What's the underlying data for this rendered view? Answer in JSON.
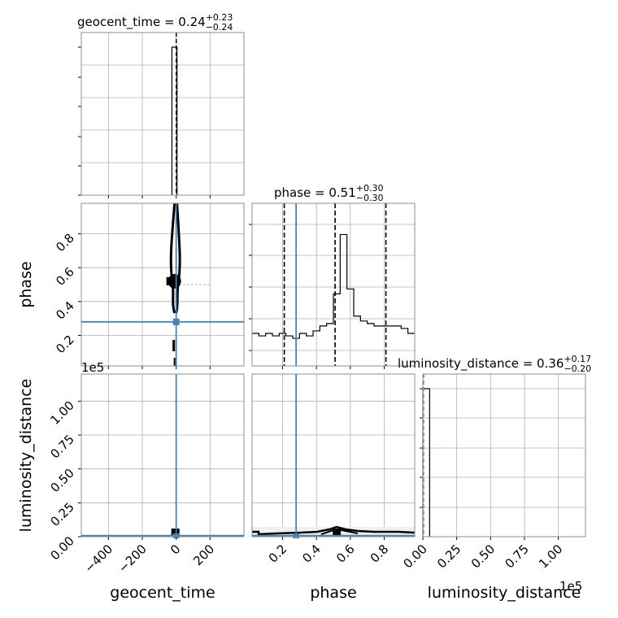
{
  "chart_data": {
    "type": "corner",
    "parameters": [
      "geocent_time",
      "phase",
      "luminosity_distance"
    ],
    "titles": [
      {
        "param": "geocent_time",
        "text": "geocent_time = 0.24",
        "plus": "+0.23",
        "minus": "−0.24"
      },
      {
        "param": "phase",
        "text": "phase = 0.51",
        "plus": "+0.30",
        "minus": "−0.30"
      },
      {
        "param": "luminosity_distance",
        "text": "luminosity_distance = 0.36",
        "plus": "+0.17",
        "minus": "−0.20"
      }
    ],
    "axis_labels": {
      "x": [
        "geocent_time",
        "phase",
        "luminosity_distance"
      ],
      "y": [
        "phase",
        "luminosity_distance"
      ]
    },
    "offset_labels": {
      "lum_y": "1e5",
      "lum_x": "1e5"
    },
    "ticks": {
      "geocent_time": {
        "values": [
          -400,
          -200,
          0,
          200
        ],
        "labels": [
          "−400",
          "−200",
          "0",
          "200"
        ]
      },
      "phase": {
        "values": [
          0.2,
          0.4,
          0.6,
          0.8
        ],
        "labels": [
          "0.2",
          "0.4",
          "0.6",
          "0.8"
        ]
      },
      "luminosity_distance": {
        "values": [
          0,
          0.25,
          0.5,
          0.75,
          1.0
        ],
        "labels": [
          "0.00",
          "0.25",
          "0.50",
          "0.75",
          "1.00"
        ]
      }
    },
    "ranges": {
      "geocent_time": [
        -560,
        400
      ],
      "phase": [
        0.02,
        0.98
      ],
      "luminosity_distance": [
        0,
        1.2
      ]
    },
    "injection": {
      "geocent_time": 0,
      "phase": 0.28,
      "luminosity_distance": 0
    },
    "quantile_lines": {
      "geocent_time": [
        0.0,
        0.24,
        0.47
      ],
      "phase": [
        0.21,
        0.51,
        0.81
      ]
    },
    "hist_phase": {
      "bins": [
        0.02,
        0.06,
        0.1,
        0.14,
        0.18,
        0.22,
        0.26,
        0.3,
        0.34,
        0.38,
        0.42,
        0.46,
        0.5,
        0.54,
        0.58,
        0.62,
        0.66,
        0.7,
        0.74,
        0.78,
        0.82,
        0.86,
        0.9,
        0.94,
        0.98
      ],
      "counts": [
        0.12,
        0.11,
        0.12,
        0.11,
        0.12,
        0.11,
        0.1,
        0.12,
        0.11,
        0.13,
        0.15,
        0.16,
        0.28,
        0.52,
        0.3,
        0.19,
        0.17,
        0.16,
        0.15,
        0.15,
        0.15,
        0.15,
        0.14,
        0.12
      ]
    },
    "hist_geocent_time": {
      "bin_start": -25,
      "bin_end": 5,
      "relative_height": 1.0
    },
    "hist_luminosity_distance": {
      "bin_start": 0.0,
      "bin_end": 0.05,
      "relative_height": 1.0
    },
    "grid": true
  }
}
